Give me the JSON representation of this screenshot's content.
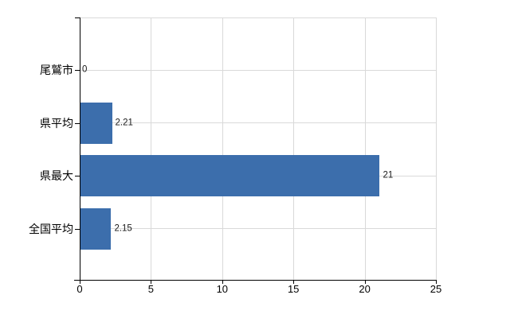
{
  "chart_data": {
    "type": "bar",
    "orientation": "horizontal",
    "title": "",
    "xlabel": "",
    "ylabel": "",
    "categories": [
      "尾鷲市",
      "県平均",
      "県最大",
      "全国平均"
    ],
    "values": [
      0,
      2.21,
      21,
      2.15
    ],
    "value_labels": [
      "0",
      "2.21",
      "21",
      "2.15"
    ],
    "xlim": [
      0,
      25
    ],
    "xticks": [
      0,
      5,
      10,
      15,
      20,
      25
    ],
    "xtick_labels": [
      "0",
      "5",
      "10",
      "15",
      "20",
      "25"
    ],
    "grid": "on",
    "legend": "none",
    "colors": {
      "bar": "#3C6EAC",
      "grid": "#D9D9D9",
      "axis": "#000000",
      "tick_label": "#000000",
      "value_label": "#1A1A1A",
      "background": "#FFFFFF"
    }
  }
}
